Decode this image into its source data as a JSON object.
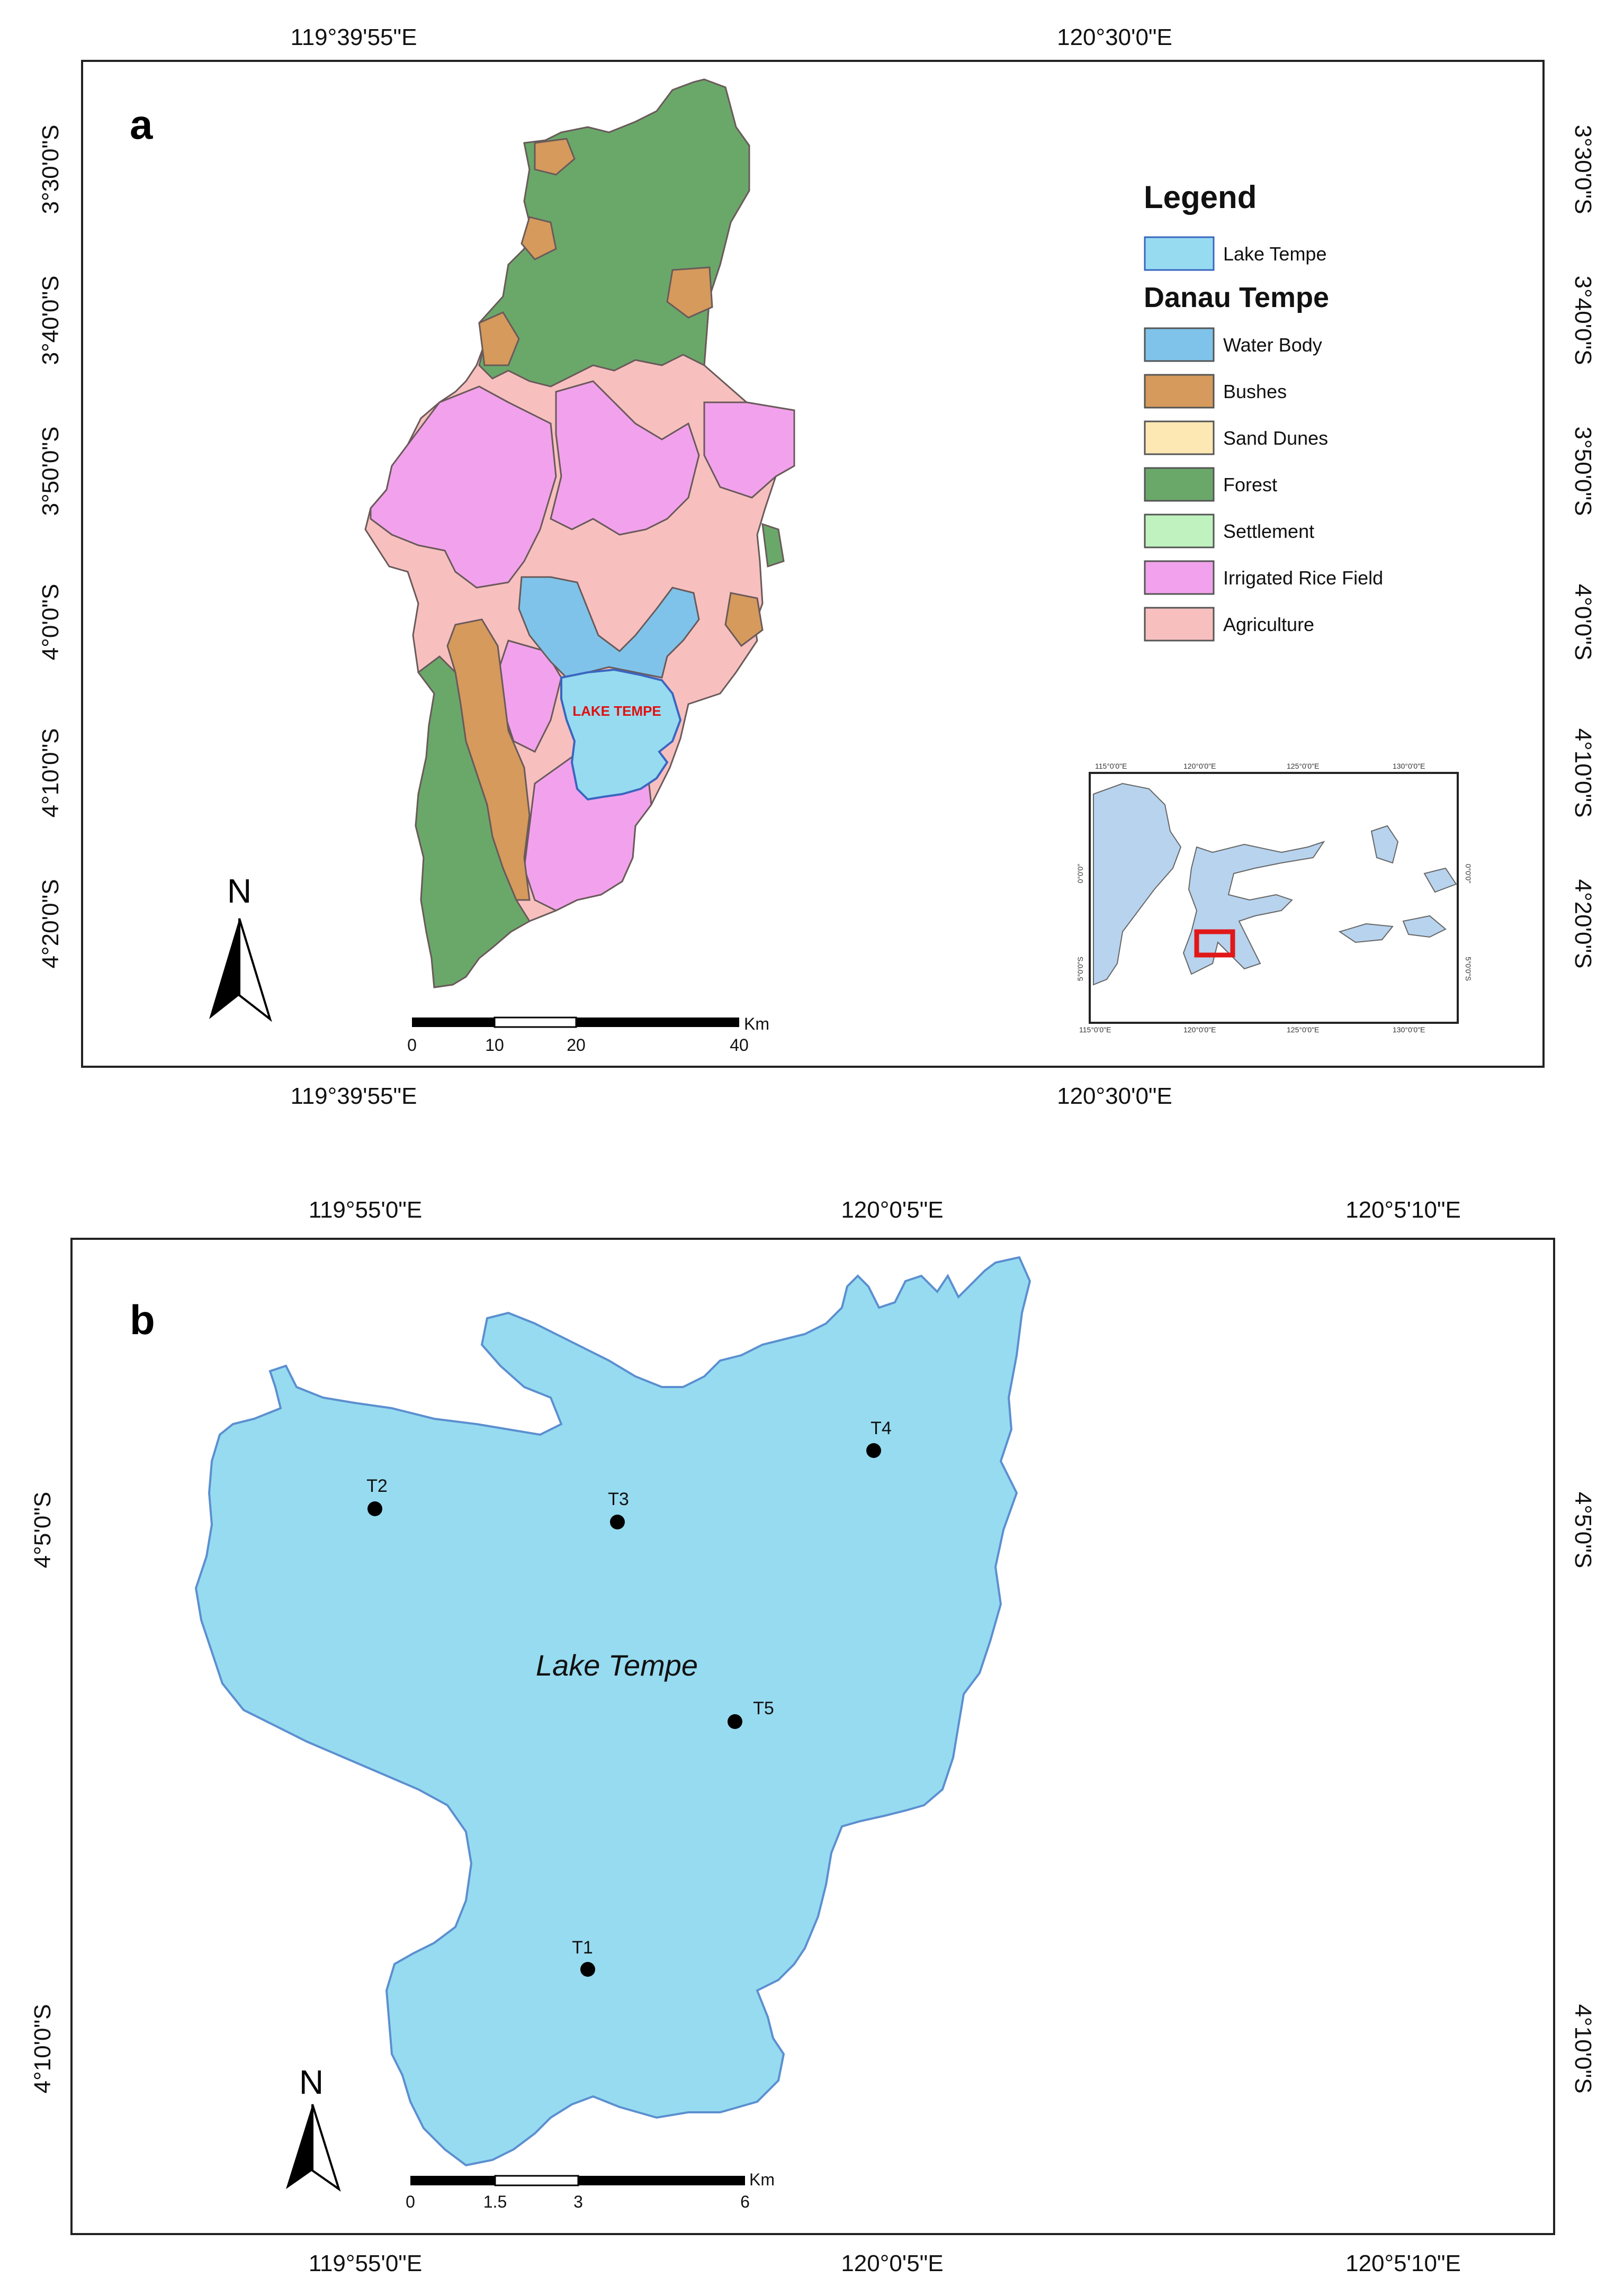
{
  "panel_a": {
    "letter": "a",
    "top_coords": [
      "119°39'55\"E",
      "120°30'0\"E"
    ],
    "bottom_coords": [
      "119°39'55\"E",
      "120°30'0\"E"
    ],
    "left_coords": [
      "3°30'0\"S",
      "3°40'0\"S",
      "3°50'0\"S",
      "4°0'0\"S",
      "4°10'0\"S",
      "4°20'0\"S"
    ],
    "right_coords": [
      "3°30'0\"S",
      "3°40'0\"S",
      "3°50'0\"S",
      "4°0'0\"S",
      "4°10'0\"S",
      "4°20'0\"S"
    ],
    "lake_label": "LAKE TEMPE",
    "legend": {
      "title": "Legend",
      "lake_item": {
        "label": "Lake Tempe",
        "color": "#97dbf0"
      },
      "subtitle": "Danau Tempe",
      "items": [
        {
          "label": "Water Body",
          "color": "#7fc3ea"
        },
        {
          "label": "Bushes",
          "color": "#d59a5c"
        },
        {
          "label": "Sand Dunes",
          "color": "#fde8b4"
        },
        {
          "label": "Forest",
          "color": "#6aa86a"
        },
        {
          "label": "Settlement",
          "color": "#bff2bf"
        },
        {
          "label": "Irrigated Rice Field",
          "color": "#f2a2ec"
        },
        {
          "label": "Agriculture",
          "color": "#f7c0bf"
        }
      ]
    },
    "scale": {
      "labels": [
        "0",
        "10",
        "20",
        "40"
      ],
      "unit": "Km"
    },
    "north": "N",
    "inset": {
      "top_ticks": [
        "115°0'0\"E",
        "120°0'0\"E",
        "125°0'0\"E",
        "130°0'0\"E"
      ],
      "bottom_ticks": [
        "115°0'0\"E",
        "120°0'0\"E",
        "125°0'0\"E",
        "130°0'0\"E"
      ],
      "left_ticks": [
        "0°0'0\"",
        "5°0'0\"S"
      ],
      "right_ticks": [
        "0°0'0\"",
        "5°0'0\"S"
      ]
    }
  },
  "panel_b": {
    "letter": "b",
    "top_coords": [
      "119°55'0\"E",
      "120°0'5\"E",
      "120°5'10\"E"
    ],
    "bottom_coords": [
      "119°55'0\"E",
      "120°0'5\"E",
      "120°5'10\"E"
    ],
    "left_coords": [
      "4°5'0\"S",
      "4°10'0\"S"
    ],
    "right_coords": [
      "4°5'0\"S",
      "4°10'0\"S"
    ],
    "lake_label": "Lake Tempe",
    "sites": [
      {
        "id": "T1"
      },
      {
        "id": "T2"
      },
      {
        "id": "T3"
      },
      {
        "id": "T4"
      },
      {
        "id": "T5"
      }
    ],
    "scale": {
      "labels": [
        "0",
        "1.5",
        "3",
        "6"
      ],
      "unit": "Km"
    },
    "north": "N"
  },
  "colors": {
    "lake": "#97dbf0",
    "lake_edge": "#4a86c8",
    "forest": "#6aa86a",
    "bushes": "#d59a5c",
    "rice": "#f2a2ec",
    "agri": "#f7c0bf",
    "water_body": "#7fc3ea",
    "inset_land": "#b7d3ee",
    "highlight": "#e01818"
  }
}
